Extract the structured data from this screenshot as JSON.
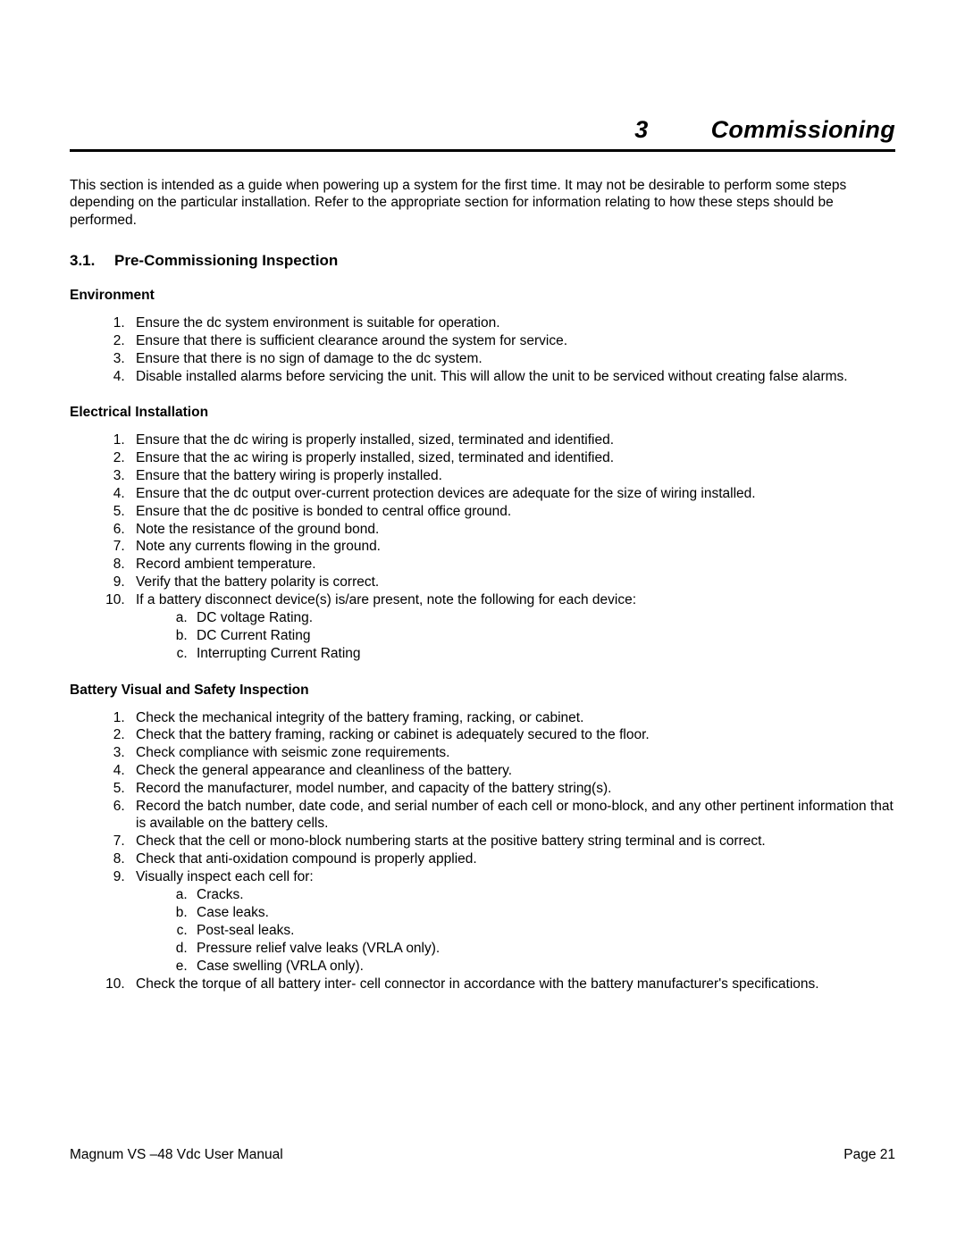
{
  "chapter": {
    "number": "3",
    "title": "Commissioning"
  },
  "intro": "This section is intended as a guide when powering up a system for the first time.  It may not be desirable to perform some steps depending on the particular installation.  Refer to the appropriate section for information relating to how these steps should be performed.",
  "section": {
    "number": "3.1.",
    "title": "Pre-Commissioning Inspection"
  },
  "sub1": {
    "title": "Environment",
    "items": [
      "Ensure the dc system environment is suitable for operation.",
      "Ensure that there is sufficient clearance around the system for service.",
      "Ensure that there is no sign of damage to the dc system.",
      "Disable installed alarms before servicing the unit.  This will allow the unit to be serviced without creating false alarms."
    ]
  },
  "sub2": {
    "title": "Electrical Installation",
    "items": [
      "Ensure that the dc wiring is properly installed, sized, terminated and identified.",
      "Ensure that the ac wiring is properly installed, sized, terminated and identified.",
      "Ensure that the battery wiring is properly installed.",
      "Ensure that the dc output over-current protection devices are adequate for the size of wiring installed.",
      "Ensure that the dc positive is bonded to central office ground.",
      "Note the resistance of the ground bond.",
      "Note any currents flowing in the ground.",
      "Record ambient temperature.",
      "Verify that the battery polarity is correct.",
      "If a battery disconnect device(s) is/are present, note the following for each device:"
    ],
    "subitems": [
      "DC voltage Rating.",
      "DC Current Rating",
      "Interrupting Current Rating"
    ]
  },
  "sub3": {
    "title": "Battery Visual and Safety Inspection",
    "items": [
      "Check the mechanical integrity of the battery framing, racking, or cabinet.",
      "Check that the battery framing, racking or cabinet is adequately secured to the floor.",
      "Check compliance with seismic zone requirements.",
      "Check the general appearance and cleanliness of the battery.",
      "Record the manufacturer, model number, and capacity of the battery string(s).",
      "Record the batch number, date code, and serial number of each cell or mono-block, and any other pertinent information that is available on the battery cells.",
      "Check that the cell or mono-block numbering starts at the positive battery string terminal and is correct.",
      "Check that anti-oxidation compound is properly applied.",
      "Visually inspect each cell for:"
    ],
    "subitems9": [
      "Cracks.",
      "Case leaks.",
      "Post-seal leaks.",
      "Pressure relief valve leaks (VRLA only).",
      "Case swelling (VRLA only)."
    ],
    "item10": "Check the torque of all battery inter- cell connector in accordance with the battery manufacturer's specifications."
  },
  "footer": {
    "left": "Magnum VS –48 Vdc User Manual",
    "right": "Page 21"
  }
}
